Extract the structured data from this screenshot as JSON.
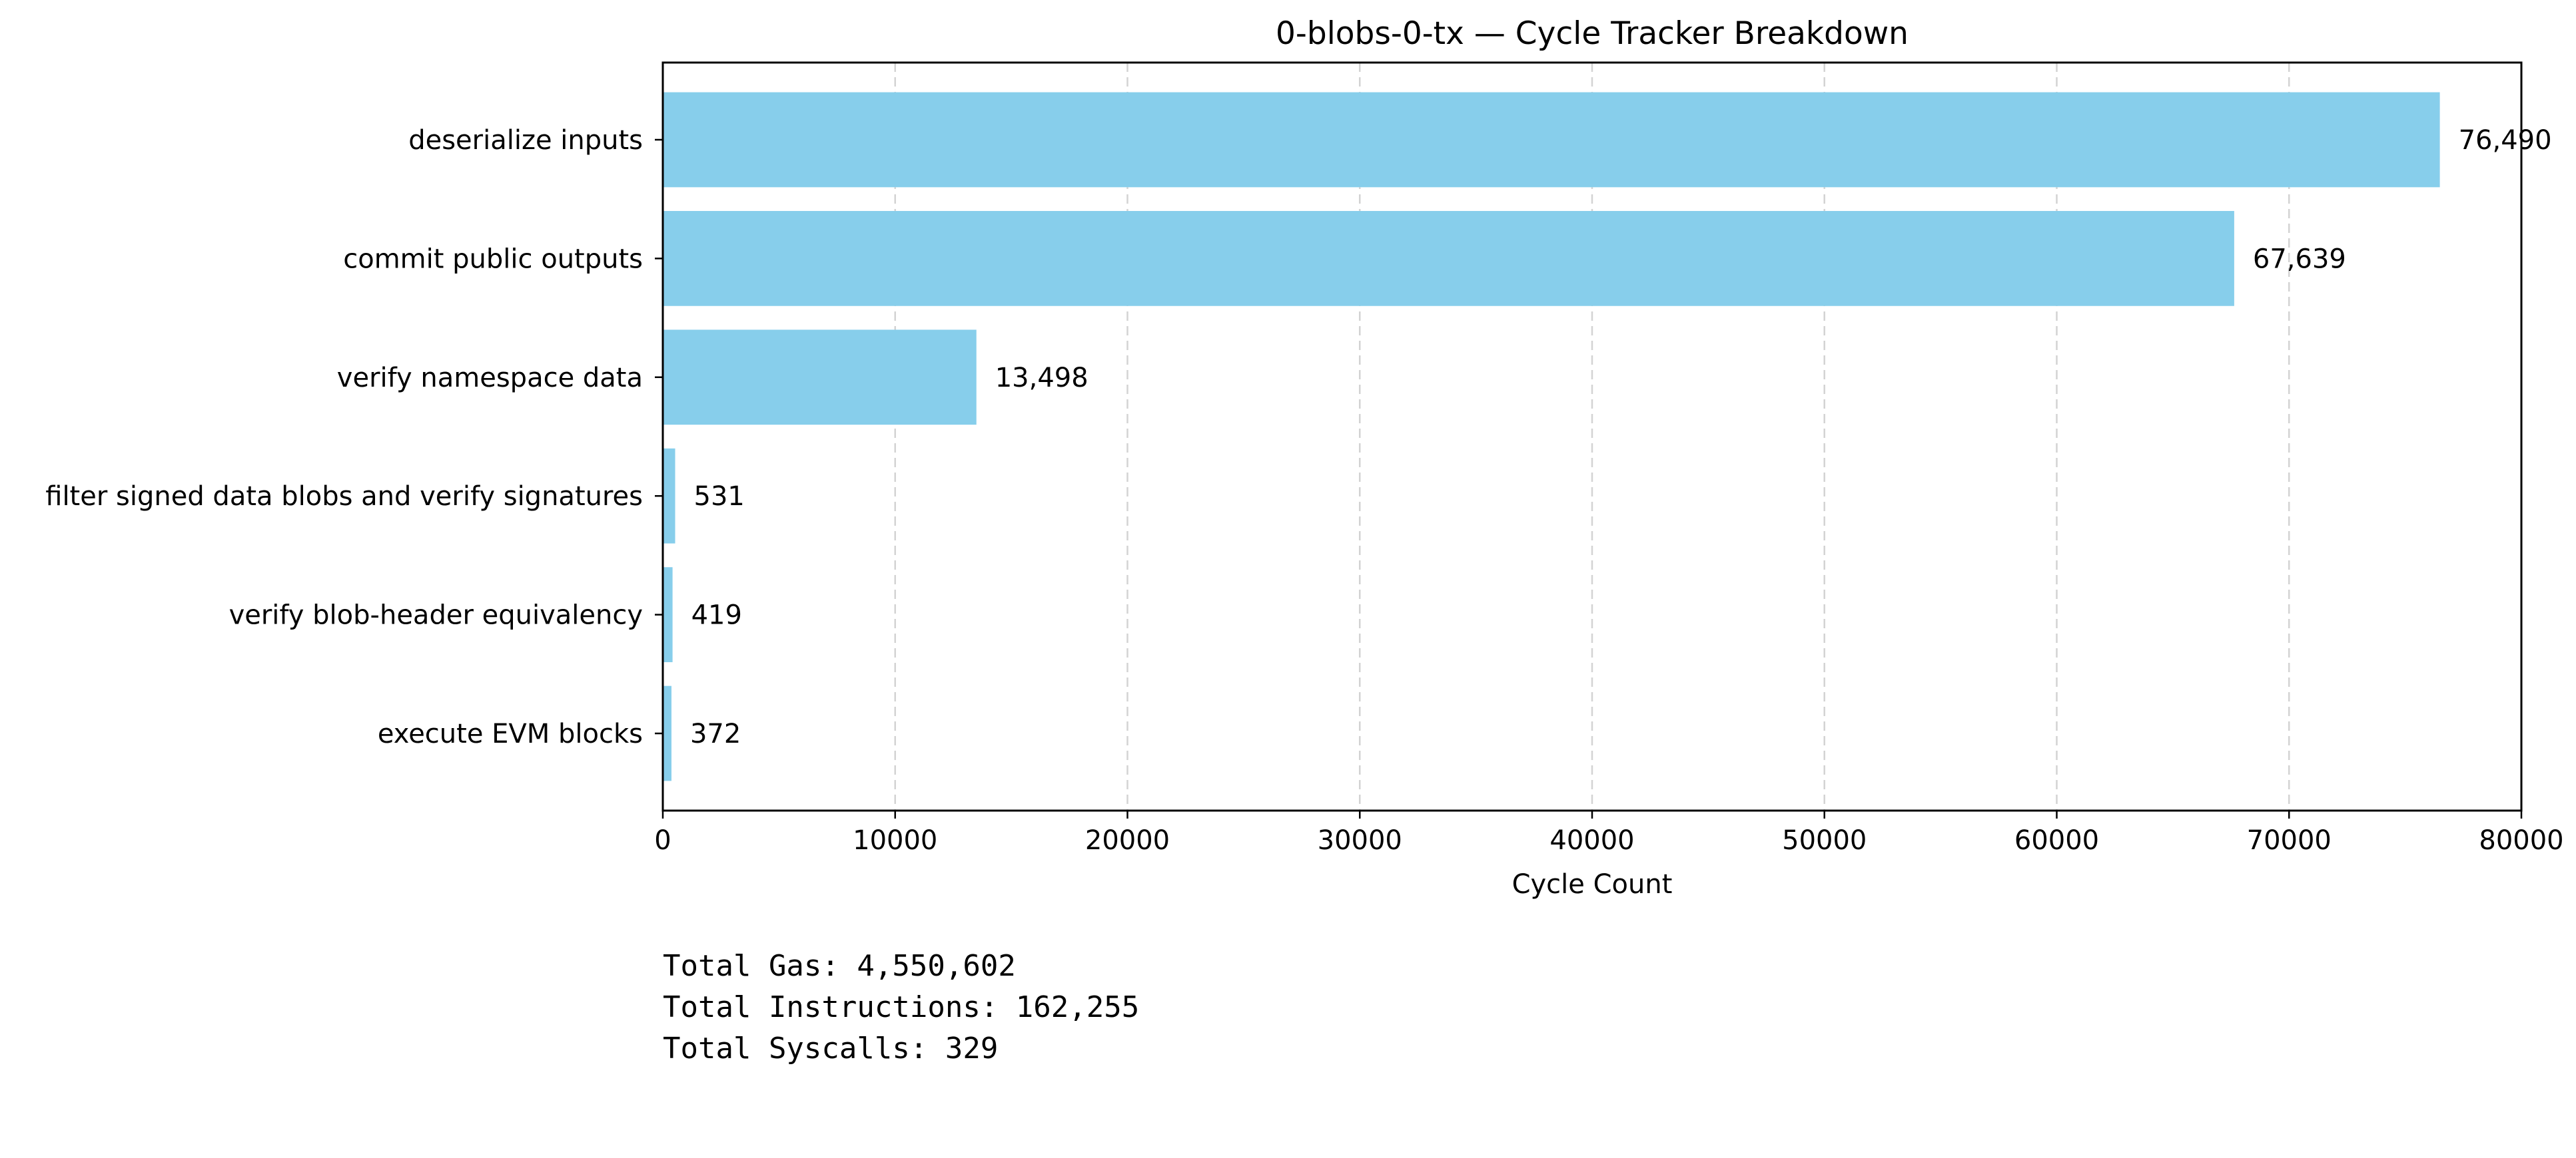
{
  "chart_data": {
    "type": "bar",
    "orientation": "horizontal",
    "title": "0-blobs-0-tx — Cycle Tracker Breakdown",
    "xlabel": "Cycle Count",
    "ylabel": "",
    "categories": [
      "deserialize inputs",
      "commit public outputs",
      "verify namespace data",
      "filter signed data blobs and verify signatures",
      "verify blob-header equivalency",
      "execute EVM blocks"
    ],
    "values": [
      76490,
      67639,
      13498,
      531,
      419,
      372
    ],
    "value_labels": [
      "76,490",
      "67,639",
      "13,498",
      "531",
      "419",
      "372"
    ],
    "xlim": [
      0,
      80000
    ],
    "x_ticks": [
      0,
      10000,
      20000,
      30000,
      40000,
      50000,
      60000,
      70000,
      80000
    ],
    "x_tick_labels": [
      "0",
      "10000",
      "20000",
      "30000",
      "40000",
      "50000",
      "60000",
      "70000",
      "80000"
    ],
    "grid": "x-dashed",
    "legend": "none",
    "bar_color": "#87ceeb",
    "grid_color": "#d3d3d3"
  },
  "summary": {
    "total_gas": "Total Gas: 4,550,602",
    "total_instructions": "Total Instructions: 162,255",
    "total_syscalls": "Total Syscalls: 329"
  }
}
